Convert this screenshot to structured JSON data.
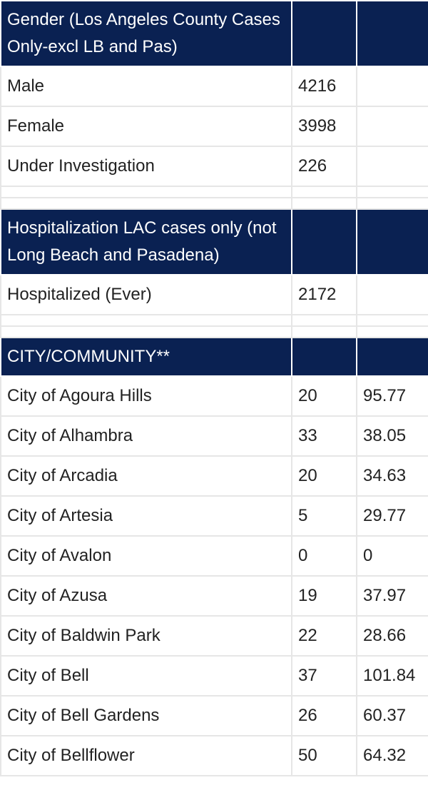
{
  "sections": [
    {
      "title": "Gender (Los Angeles County Cases Only-excl LB and Pas)",
      "rows": [
        {
          "label": "Male",
          "count": "4216",
          "rate": ""
        },
        {
          "label": "Female",
          "count": "3998",
          "rate": ""
        },
        {
          "label": "Under Investigation",
          "count": "226",
          "rate": ""
        }
      ]
    },
    {
      "title": "Hospitalization LAC cases only (not Long Beach and Pasadena)",
      "rows": [
        {
          "label": "Hospitalized (Ever)",
          "count": "2172",
          "rate": ""
        }
      ]
    },
    {
      "title": "CITY/COMMUNITY**",
      "rows": [
        {
          "label": "City of Agoura Hills",
          "count": "20",
          "rate": "95.77"
        },
        {
          "label": "City of Alhambra",
          "count": "33",
          "rate": "38.05"
        },
        {
          "label": "City of Arcadia",
          "count": "20",
          "rate": "34.63"
        },
        {
          "label": "City of Artesia",
          "count": "5",
          "rate": "29.77"
        },
        {
          "label": "City of Avalon",
          "count": "0",
          "rate": "0"
        },
        {
          "label": "City of Azusa",
          "count": "19",
          "rate": "37.97"
        },
        {
          "label": "City of Baldwin Park",
          "count": "22",
          "rate": "28.66"
        },
        {
          "label": "City of Bell",
          "count": "37",
          "rate": "101.84"
        },
        {
          "label": "City of Bell Gardens",
          "count": "26",
          "rate": "60.37"
        },
        {
          "label": "City of Bellflower",
          "count": "50",
          "rate": "64.32"
        }
      ]
    }
  ]
}
